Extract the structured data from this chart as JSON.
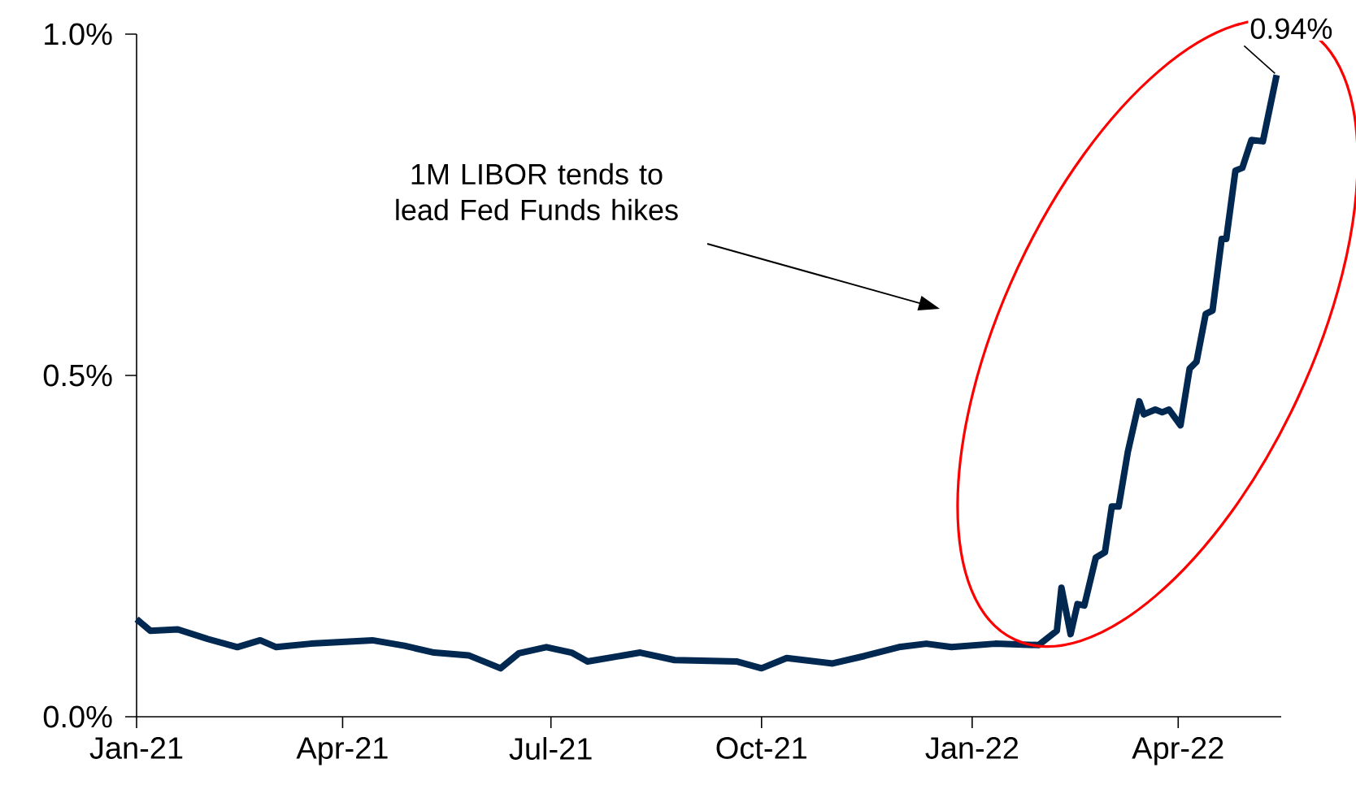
{
  "chart_data": {
    "type": "line",
    "x": [
      "2021-01-01",
      "2021-01-07",
      "2021-01-19",
      "2021-02-01",
      "2021-02-14",
      "2021-02-24",
      "2021-03-03",
      "2021-03-18",
      "2021-04-14",
      "2021-04-28",
      "2021-05-11",
      "2021-05-26",
      "2021-06-09",
      "2021-06-17",
      "2021-06-29",
      "2021-07-10",
      "2021-07-17",
      "2021-08-09",
      "2021-08-24",
      "2021-09-20",
      "2021-10-01",
      "2021-10-12",
      "2021-11-01",
      "2021-11-15",
      "2021-11-30",
      "2021-12-12",
      "2021-12-23",
      "2022-01-11",
      "2022-01-30",
      "2022-02-07",
      "2022-02-09",
      "2022-02-13",
      "2022-02-16",
      "2022-02-19",
      "2022-02-24",
      "2022-02-28",
      "2022-03-03",
      "2022-03-06",
      "2022-03-10",
      "2022-03-15",
      "2022-03-17",
      "2022-03-22",
      "2022-03-25",
      "2022-03-28",
      "2022-04-02",
      "2022-04-06",
      "2022-04-09",
      "2022-04-13",
      "2022-04-16",
      "2022-04-20",
      "2022-04-22",
      "2022-04-26",
      "2022-04-29",
      "2022-05-03",
      "2022-05-08",
      "2022-05-14"
    ],
    "series": [
      {
        "color": "#002850",
        "values": [
          0.143,
          0.126,
          0.128,
          0.114,
          0.102,
          0.112,
          0.102,
          0.107,
          0.112,
          0.104,
          0.094,
          0.09,
          0.071,
          0.093,
          0.102,
          0.094,
          0.081,
          0.094,
          0.083,
          0.081,
          0.071,
          0.086,
          0.078,
          0.089,
          0.102,
          0.107,
          0.102,
          0.107,
          0.105,
          0.126,
          0.189,
          0.121,
          0.165,
          0.163,
          0.233,
          0.241,
          0.308,
          0.308,
          0.388,
          0.462,
          0.443,
          0.45,
          0.446,
          0.45,
          0.427,
          0.51,
          0.52,
          0.59,
          0.595,
          0.7,
          0.7,
          0.8,
          0.804,
          0.845,
          0.843,
          0.94
        ]
      }
    ],
    "line_style": "solid",
    "xlim": [
      "2021-01-01",
      "2022-05-16"
    ],
    "ylim": [
      0,
      1.0
    ],
    "xticks": [
      {
        "value": "2021-01-01",
        "label": "Jan-21"
      },
      {
        "value": "2021-04-01",
        "label": "Apr-21"
      },
      {
        "value": "2021-07-01",
        "label": "Jul-21"
      },
      {
        "value": "2021-10-01",
        "label": "Oct-21"
      },
      {
        "value": "2022-01-01",
        "label": "Jan-22"
      },
      {
        "value": "2022-04-01",
        "label": "Apr-22"
      }
    ],
    "yticks": [
      {
        "value": 0,
        "label": "0.0%"
      },
      {
        "value": 0.5,
        "label": "0.5%"
      },
      {
        "value": 1.0,
        "label": "1.0%"
      }
    ],
    "annotations": [
      "1M LIBOR tends to lead Fed Funds hikes",
      {
        "text": "0.94%",
        "x": "2022-05-14",
        "y": 0.94
      }
    ]
  }
}
